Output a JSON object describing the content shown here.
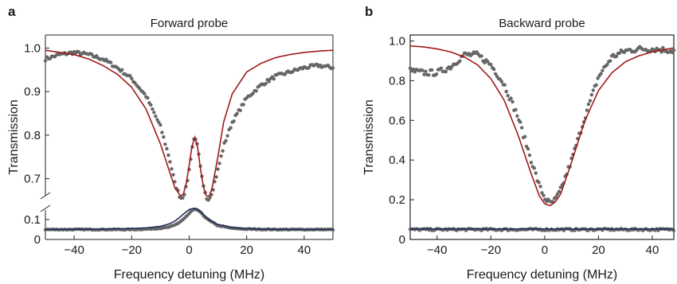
{
  "chart_data": [
    {
      "type": "scatter",
      "panel_label": "a",
      "title": "Forward probe",
      "xlabel": "Frequency detuning (MHz)",
      "ylabel": "Transmission",
      "xlim": [
        -50,
        50
      ],
      "broken_y_axis": true,
      "upper_ylim": [
        0.65,
        1.03
      ],
      "lower_ylim": [
        0,
        0.18
      ],
      "xticks": [
        -40,
        -20,
        0,
        20,
        40
      ],
      "xtick_labels": [
        "−40",
        "−20",
        "0",
        "20",
        "40"
      ],
      "upper_yticks": [
        0.7,
        0.8,
        0.9,
        1.0
      ],
      "upper_ytick_labels": [
        "0.7",
        "0.8",
        "0.9",
        "1.0"
      ],
      "lower_yticks": [
        0,
        0.1
      ],
      "lower_ytick_labels": [
        "0",
        "0.1"
      ],
      "colors": {
        "data": "#666666",
        "fit_transmission": "#9e1b1b",
        "fit_reflection": "#1f2f5a"
      },
      "series": [
        {
          "kind": "measured",
          "x": [
            -50,
            -45,
            -40,
            -35,
            -30,
            -25,
            -20,
            -15,
            -10,
            -7,
            -5,
            -3,
            -2,
            -1,
            0,
            1,
            2,
            3,
            4,
            5,
            6,
            7,
            8,
            10,
            12,
            15,
            20,
            25,
            30,
            35,
            40,
            45,
            50
          ],
          "y": [
            0.975,
            0.985,
            0.99,
            0.985,
            0.975,
            0.955,
            0.93,
            0.89,
            0.82,
            0.75,
            0.69,
            0.655,
            0.66,
            0.68,
            0.72,
            0.77,
            0.8,
            0.77,
            0.72,
            0.68,
            0.655,
            0.655,
            0.67,
            0.72,
            0.775,
            0.83,
            0.885,
            0.915,
            0.935,
            0.945,
            0.955,
            0.96,
            0.955
          ]
        },
        {
          "kind": "fit",
          "x": [
            -50,
            -45,
            -40,
            -35,
            -30,
            -25,
            -20,
            -15,
            -10,
            -7,
            -5,
            -3,
            -2,
            -1,
            0,
            1,
            2,
            3,
            4,
            5,
            6,
            7,
            8,
            10,
            12,
            15,
            20,
            25,
            30,
            35,
            40,
            45,
            50
          ],
          "y": [
            0.995,
            0.99,
            0.985,
            0.975,
            0.96,
            0.94,
            0.91,
            0.86,
            0.78,
            0.72,
            0.68,
            0.66,
            0.665,
            0.69,
            0.73,
            0.775,
            0.795,
            0.77,
            0.72,
            0.68,
            0.66,
            0.66,
            0.68,
            0.75,
            0.83,
            0.895,
            0.945,
            0.965,
            0.978,
            0.985,
            0.99,
            0.993,
            0.995
          ]
        },
        {
          "kind": "measured",
          "x": [
            -50,
            -40,
            -30,
            -20,
            -15,
            -10,
            -7,
            -5,
            -3,
            -1,
            0,
            1,
            2,
            3,
            4,
            5,
            7,
            10,
            15,
            20,
            30,
            40,
            50
          ],
          "y": [
            0.05,
            0.05,
            0.05,
            0.05,
            0.052,
            0.056,
            0.062,
            0.072,
            0.09,
            0.115,
            0.13,
            0.145,
            0.15,
            0.148,
            0.135,
            0.12,
            0.095,
            0.07,
            0.056,
            0.052,
            0.05,
            0.05,
            0.05
          ]
        },
        {
          "kind": "fit",
          "x": [
            -50,
            -40,
            -30,
            -20,
            -15,
            -10,
            -7,
            -5,
            -3,
            -1,
            0,
            1,
            2,
            3,
            4,
            5,
            7,
            10,
            15,
            20,
            30,
            40,
            50
          ],
          "y": [
            0.05,
            0.051,
            0.052,
            0.055,
            0.058,
            0.066,
            0.078,
            0.092,
            0.115,
            0.14,
            0.15,
            0.155,
            0.156,
            0.152,
            0.14,
            0.125,
            0.098,
            0.075,
            0.06,
            0.054,
            0.051,
            0.05,
            0.05
          ]
        }
      ]
    },
    {
      "type": "scatter",
      "panel_label": "b",
      "title": "Backward probe",
      "xlabel": "Frequency detuning (MHz)",
      "ylabel": "Transmission",
      "xlim": [
        -50,
        48
      ],
      "ylim": [
        0,
        1.03
      ],
      "xticks": [
        -40,
        -20,
        0,
        20,
        40
      ],
      "xtick_labels": [
        "−40",
        "−20",
        "0",
        "20",
        "40"
      ],
      "yticks": [
        0,
        0.2,
        0.4,
        0.6,
        0.8,
        1.0
      ],
      "ytick_labels": [
        "0",
        "0.2",
        "0.4",
        "0.6",
        "0.8",
        "1.0"
      ],
      "colors": {
        "data": "#666666",
        "fit_transmission": "#9e1b1b",
        "fit_reflection": "#1f2f5a"
      },
      "series": [
        {
          "kind": "measured",
          "x": [
            -50,
            -45,
            -40,
            -35,
            -30,
            -25,
            -20,
            -15,
            -10,
            -5,
            -2,
            0,
            2,
            4,
            6,
            10,
            15,
            20,
            25,
            30,
            35,
            40,
            45,
            48
          ],
          "y": [
            0.85,
            0.84,
            0.84,
            0.87,
            0.93,
            0.93,
            0.88,
            0.78,
            0.62,
            0.4,
            0.27,
            0.21,
            0.18,
            0.2,
            0.25,
            0.4,
            0.62,
            0.82,
            0.92,
            0.95,
            0.96,
            0.96,
            0.955,
            0.95
          ]
        },
        {
          "kind": "fit",
          "x": [
            -50,
            -45,
            -40,
            -35,
            -30,
            -25,
            -20,
            -15,
            -10,
            -5,
            -2,
            0,
            2,
            4,
            6,
            10,
            15,
            20,
            25,
            30,
            35,
            40,
            45,
            48
          ],
          "y": [
            0.975,
            0.97,
            0.96,
            0.945,
            0.92,
            0.88,
            0.81,
            0.7,
            0.53,
            0.33,
            0.22,
            0.18,
            0.17,
            0.19,
            0.23,
            0.39,
            0.6,
            0.75,
            0.84,
            0.895,
            0.925,
            0.945,
            0.958,
            0.965
          ]
        },
        {
          "kind": "measured",
          "x": [
            -50,
            -40,
            -30,
            -20,
            -10,
            0,
            10,
            20,
            30,
            40,
            48
          ],
          "y": [
            0.05,
            0.05,
            0.05,
            0.05,
            0.05,
            0.05,
            0.05,
            0.05,
            0.05,
            0.05,
            0.05
          ]
        },
        {
          "kind": "fit",
          "x": [
            -50,
            -40,
            -30,
            -20,
            -10,
            0,
            10,
            20,
            30,
            40,
            48
          ],
          "y": [
            0.053,
            0.053,
            0.053,
            0.053,
            0.053,
            0.053,
            0.053,
            0.053,
            0.053,
            0.053,
            0.053
          ]
        }
      ]
    }
  ]
}
